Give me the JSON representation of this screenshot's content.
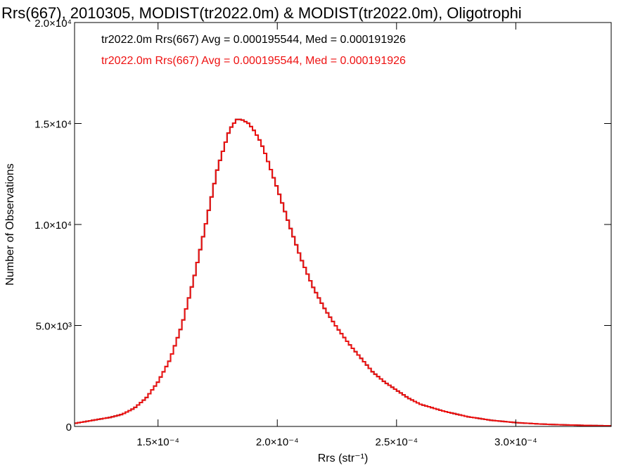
{
  "chart_data": {
    "type": "histogram-step",
    "title": "Rrs(667), 2010305, MODIST(tr2022.0m) & MODIST(tr2022.0m), Oligotrophi",
    "xlabel": "Rrs (str⁻¹)",
    "ylabel": "Number of Observations",
    "xlim": [
      0.000115,
      0.00034
    ],
    "ylim": [
      0,
      20000
    ],
    "x_ticks": [
      {
        "value": 0.00015,
        "label": "1.5×10⁻⁴"
      },
      {
        "value": 0.0002,
        "label": "2.0×10⁻⁴"
      },
      {
        "value": 0.00025,
        "label": "2.5×10⁻⁴"
      },
      {
        "value": 0.0003,
        "label": "3.0×10⁻⁴"
      }
    ],
    "y_ticks": [
      {
        "value": 0,
        "label": "0"
      },
      {
        "value": 5000,
        "label": "5.0×10³"
      },
      {
        "value": 10000,
        "label": "1.0×10⁴"
      },
      {
        "value": 15000,
        "label": "1.5×10⁴"
      },
      {
        "value": 20000,
        "label": "2.0×10⁴"
      }
    ],
    "annotations": [
      {
        "text": "tr2022.0m Rrs(667) Avg = 0.000195544, Med = 0.000191926",
        "color": "#000000"
      },
      {
        "text": "tr2022.0m Rrs(667) Avg = 0.000195544, Med = 0.000191926",
        "color": "#ee1111"
      }
    ],
    "series": [
      {
        "color": "#000000",
        "x": [
          0.000115,
          0.00012,
          0.000125,
          0.00013,
          0.000135,
          0.00014,
          0.000145,
          0.00015,
          0.000155,
          0.00016,
          0.000165,
          0.00017,
          0.000175,
          0.00018,
          0.000183,
          0.000185,
          0.000188,
          0.00019,
          0.000193,
          0.000195,
          0.0002,
          0.000205,
          0.00021,
          0.000215,
          0.00022,
          0.000225,
          0.00023,
          0.000235,
          0.00024,
          0.000245,
          0.00025,
          0.000255,
          0.00026,
          0.00027,
          0.00028,
          0.00029,
          0.0003,
          0.00031,
          0.00032,
          0.00033,
          0.00034
        ],
        "y": [
          150,
          250,
          350,
          450,
          600,
          900,
          1400,
          2200,
          3300,
          5000,
          7300,
          10000,
          12800,
          14700,
          15200,
          15200,
          15000,
          14700,
          14100,
          13500,
          11800,
          10000,
          8300,
          6900,
          5800,
          4900,
          4100,
          3400,
          2700,
          2200,
          1800,
          1400,
          1100,
          750,
          480,
          300,
          190,
          120,
          80,
          50,
          30
        ]
      },
      {
        "color": "#ee1111",
        "x": [
          0.000115,
          0.00012,
          0.000125,
          0.00013,
          0.000135,
          0.00014,
          0.000145,
          0.00015,
          0.000155,
          0.00016,
          0.000165,
          0.00017,
          0.000175,
          0.00018,
          0.000183,
          0.000185,
          0.000188,
          0.00019,
          0.000193,
          0.000195,
          0.0002,
          0.000205,
          0.00021,
          0.000215,
          0.00022,
          0.000225,
          0.00023,
          0.000235,
          0.00024,
          0.000245,
          0.00025,
          0.000255,
          0.00026,
          0.00027,
          0.00028,
          0.00029,
          0.0003,
          0.00031,
          0.00032,
          0.00033,
          0.00034
        ],
        "y": [
          150,
          250,
          350,
          450,
          600,
          900,
          1400,
          2200,
          3300,
          5000,
          7300,
          10000,
          12800,
          14700,
          15200,
          15200,
          15000,
          14700,
          14100,
          13500,
          11800,
          10000,
          8300,
          6900,
          5800,
          4900,
          4100,
          3400,
          2700,
          2200,
          1800,
          1400,
          1100,
          750,
          480,
          300,
          190,
          120,
          80,
          50,
          30
        ]
      }
    ]
  }
}
